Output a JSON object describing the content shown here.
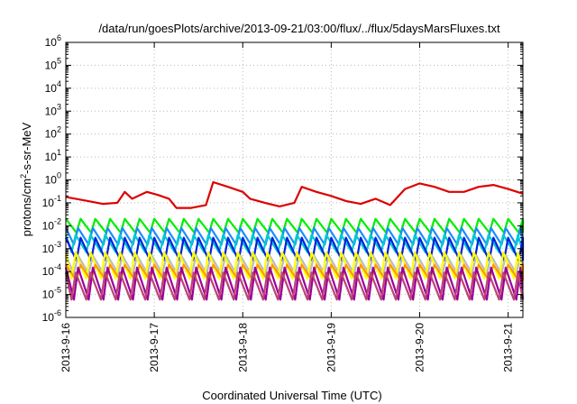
{
  "chart_data": {
    "type": "line",
    "title": "/data/run/goesPlots/archive/2013-09-21/03:00/flux/../flux/5daysMarsFluxes.txt",
    "xlabel": "Coordinated Universal Time (UTC)",
    "ylabel": {
      "pre": "protons/cm",
      "sup": "2",
      "post": "-s-sr-MeV"
    },
    "x_tick_labels": [
      "2013-9-16",
      "2013-9-17",
      "2013-9-18",
      "2013-9-19",
      "2013-9-20",
      "2013-9-21"
    ],
    "y_tick_labels": [
      {
        "base": "10",
        "exp": "-6"
      },
      {
        "base": "10",
        "exp": "-5"
      },
      {
        "base": "10",
        "exp": "-4"
      },
      {
        "base": "10",
        "exp": "-3"
      },
      {
        "base": "10",
        "exp": "-2"
      },
      {
        "base": "10",
        "exp": "-1"
      },
      {
        "base": "10",
        "exp": "0"
      },
      {
        "base": "10",
        "exp": "1"
      },
      {
        "base": "10",
        "exp": "2"
      },
      {
        "base": "10",
        "exp": "3"
      },
      {
        "base": "10",
        "exp": "4"
      },
      {
        "base": "10",
        "exp": "5"
      },
      {
        "base": "10",
        "exp": "6"
      }
    ],
    "y_scale": "log",
    "ylim": [
      1e-06,
      1000000.0
    ],
    "xlim": [
      "2013-09-16T00:00",
      "2013-09-21T04:00"
    ],
    "grid": true,
    "series": [
      {
        "color": "#dd0000",
        "x": [
          "2013-09-16T00:00",
          "2013-09-16T06:00",
          "2013-09-16T10:00",
          "2013-09-16T14:00",
          "2013-09-16T16:00",
          "2013-09-16T18:00",
          "2013-09-16T22:00",
          "2013-09-17T01:00",
          "2013-09-17T04:00",
          "2013-09-17T06:00",
          "2013-09-17T10:00",
          "2013-09-17T14:00",
          "2013-09-17T16:00",
          "2013-09-17T20:00",
          "2013-09-18T00:00",
          "2013-09-18T02:00",
          "2013-09-18T06:00",
          "2013-09-18T10:00",
          "2013-09-18T14:00",
          "2013-09-18T16:00",
          "2013-09-18T20:00",
          "2013-09-19T00:00",
          "2013-09-19T04:00",
          "2013-09-19T08:00",
          "2013-09-19T12:00",
          "2013-09-19T16:00",
          "2013-09-19T20:00",
          "2013-09-20T00:00",
          "2013-09-20T04:00",
          "2013-09-20T08:00",
          "2013-09-20T12:00",
          "2013-09-20T16:00",
          "2013-09-20T20:00",
          "2013-09-21T00:00",
          "2013-09-21T04:00"
        ],
        "values": [
          0.18,
          0.12,
          0.09,
          0.1,
          0.3,
          0.15,
          0.3,
          0.22,
          0.15,
          0.06,
          0.06,
          0.08,
          0.8,
          0.5,
          0.3,
          0.15,
          0.1,
          0.07,
          0.1,
          0.5,
          0.3,
          0.2,
          0.12,
          0.09,
          0.15,
          0.08,
          0.4,
          0.7,
          0.5,
          0.3,
          0.3,
          0.5,
          0.6,
          0.4,
          0.25
        ]
      }
    ],
    "oscillating_series": [
      {
        "color": "#00ee00",
        "high": 0.02,
        "low": 0.005
      },
      {
        "color": "#1a8cff",
        "high": 0.008,
        "low": 0.0015
      },
      {
        "color": "#00cccc",
        "high": 0.004,
        "low": 0.0007
      },
      {
        "color": "#0022dd",
        "high": 0.003,
        "low": 0.0003
      },
      {
        "color": "#bbbbbb",
        "high": 0.0005,
        "low": 8e-05
      },
      {
        "color": "#ffff00",
        "high": 0.0007,
        "low": 5e-05
      },
      {
        "color": "#ff9900",
        "high": 0.0002,
        "low": 4e-05
      },
      {
        "color": "#990099",
        "high": 0.00015,
        "low": 6e-06
      },
      {
        "color": "#bb4477",
        "high": 9e-05,
        "low": 6e-06
      }
    ],
    "oscillation_period_hours": 4
  }
}
